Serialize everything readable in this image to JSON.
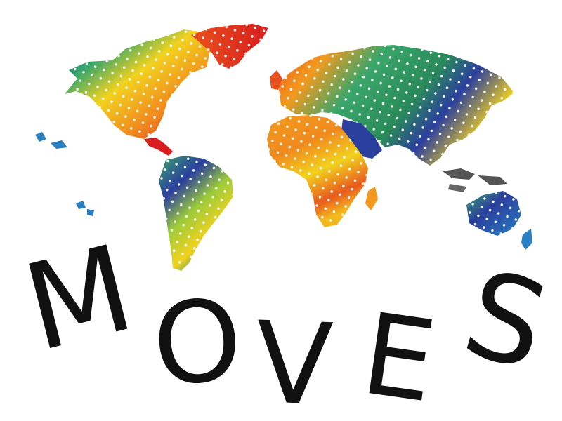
{
  "logo": {
    "wordmark": [
      "M",
      "O",
      "V",
      "E",
      "S"
    ],
    "text_color": "#111111",
    "map_gradient": [
      "#2b3f9e",
      "#2a7fc0",
      "#3aa66a",
      "#9ccc3a",
      "#f2d21e",
      "#f39a1e",
      "#e8501e",
      "#d81e1e"
    ],
    "dot_color": "#ffffff"
  }
}
